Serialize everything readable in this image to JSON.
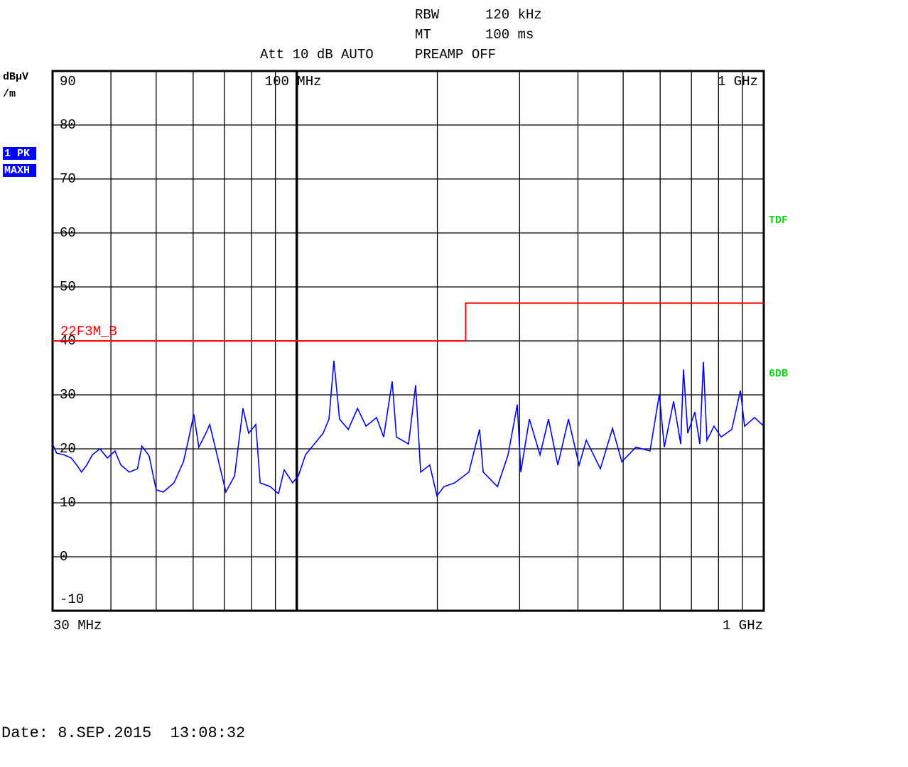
{
  "chart_data": {
    "type": "line",
    "rbw_label": "RBW",
    "rbw": "120 kHz",
    "mt_label": "MT",
    "mt": "100 ms",
    "att": "Att 10 dB AUTO",
    "preamp": "PREAMP OFF",
    "ylabel_lines": [
      "dBµV",
      "/m"
    ],
    "trace_badges": [
      "1 PK",
      "MAXH"
    ],
    "side_labels": [
      "TDF",
      "6DB"
    ],
    "date": "Date: 8.SEP.2015  13:08:32",
    "log_x": true,
    "xlim": [
      30,
      1000
    ],
    "ylim": [
      -10,
      90
    ],
    "xticks": [
      {
        "value": 30,
        "label": "30 MHz"
      },
      {
        "value": 100,
        "label": "100 MHz"
      },
      {
        "value": 1000,
        "label": "1 GHz"
      }
    ],
    "x_grid": [
      40,
      50,
      60,
      70,
      80,
      90,
      200,
      300,
      400,
      500,
      600,
      700,
      800,
      900
    ],
    "yticks": [
      -10,
      0,
      10,
      20,
      30,
      40,
      50,
      60,
      70,
      80,
      90
    ],
    "grid": true,
    "series": [
      {
        "color": "#0000ff",
        "x": [
          30.0,
          30.6,
          31.7,
          32.9,
          33.8,
          34.6,
          35.5,
          36.5,
          37.9,
          39.3,
          40.8,
          42.0,
          43.8,
          45.6,
          46.6,
          48.3,
          50.0,
          51.8,
          54.6,
          57.2,
          58.6,
          60.2,
          61.7,
          63.9,
          65.1,
          66.9,
          70.5,
          73.6,
          76.7,
          78.9,
          81.7,
          83.5,
          87.7,
          91.4,
          94.0,
          98.0,
          100.8,
          104.4,
          108.1,
          113.9,
          117.2,
          120.1,
          123.5,
          128.9,
          134.9,
          140.7,
          148.2,
          153.5,
          160.1,
          163.5,
          173.5,
          179.7,
          184.2,
          192.7,
          199.6,
          206.7,
          217.9,
          233.7,
          246.3,
          250.7,
          268.9,
          283.4,
          296.6,
          301.8,
          314.8,
          331.8,
          346.0,
          362.2,
          381.7,
          402.4,
          416.8,
          446.8,
          474.4,
          496.6,
          532.3,
          570.8,
          597.6,
          612.4,
          641.2,
          663.9,
          673.2,
          687.5,
          711.8,
          729.6,
          742.4,
          755.6,
          782.6,
          810.4,
          854.2,
          891.0,
          909.8,
          955.6,
          1000
        ],
        "values": [
          20.9,
          19.2,
          18.9,
          18.3,
          17.0,
          15.7,
          17.0,
          18.9,
          20.0,
          18.3,
          19.6,
          17.0,
          15.7,
          16.3,
          20.5,
          18.7,
          12.4,
          12.0,
          13.7,
          17.6,
          21.6,
          26.4,
          20.3,
          22.9,
          24.5,
          20.3,
          12.0,
          15.0,
          27.5,
          22.9,
          24.5,
          13.7,
          13.0,
          11.7,
          16.1,
          13.7,
          15.0,
          18.9,
          20.5,
          22.9,
          25.5,
          36.3,
          25.5,
          23.6,
          27.5,
          24.2,
          25.8,
          22.2,
          32.5,
          22.2,
          20.9,
          31.8,
          15.7,
          17.0,
          11.3,
          13.0,
          13.7,
          15.7,
          23.6,
          15.7,
          13.0,
          18.9,
          28.2,
          15.7,
          25.5,
          18.9,
          25.5,
          17.0,
          25.5,
          17.0,
          21.6,
          16.3,
          23.8,
          17.6,
          20.3,
          19.6,
          30.1,
          20.3,
          28.8,
          20.9,
          34.7,
          22.9,
          26.8,
          20.9,
          36.1,
          21.6,
          24.2,
          22.2,
          23.6,
          30.8,
          24.2,
          25.8,
          24.2
        ]
      },
      {
        "name": "22F3M_B",
        "color": "#ff0000",
        "x": [
          30,
          230,
          230,
          1000
        ],
        "values": [
          40,
          40,
          47,
          47
        ]
      }
    ]
  }
}
